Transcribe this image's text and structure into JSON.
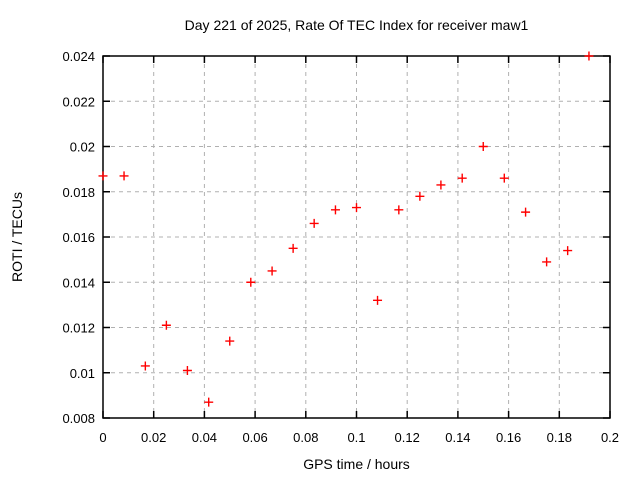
{
  "chart_data": {
    "type": "scatter",
    "title": "Day 221 of 2025, Rate Of TEC Index for receiver maw1",
    "xlabel": "GPS time / hours",
    "ylabel": "ROTI / TECUs",
    "xlim": [
      0,
      0.2
    ],
    "ylim": [
      0.008,
      0.024
    ],
    "x_ticks": [
      0,
      0.02,
      0.04,
      0.06,
      0.08,
      0.1,
      0.12,
      0.14,
      0.16,
      0.18,
      0.2
    ],
    "x_tick_labels": [
      "0",
      "0.02",
      "0.04",
      "0.06",
      "0.08",
      "0.1",
      "0.12",
      "0.14",
      "0.16",
      "0.18",
      "0.2"
    ],
    "y_ticks": [
      0.008,
      0.01,
      0.012,
      0.014,
      0.016,
      0.018,
      0.02,
      0.022,
      0.024
    ],
    "y_tick_labels": [
      "0.008",
      "0.01",
      "0.012",
      "0.014",
      "0.016",
      "0.018",
      "0.02",
      "0.022",
      "0.024"
    ],
    "grid": true,
    "legend_position": "none",
    "marker_shape": "plus",
    "marker_color": "#ff0000",
    "grid_color": "#b0b0b0",
    "border_color": "#000000",
    "points": [
      [
        0.0,
        0.0187
      ],
      [
        0.0083,
        0.0187
      ],
      [
        0.0167,
        0.0103
      ],
      [
        0.025,
        0.0121
      ],
      [
        0.0333,
        0.0101
      ],
      [
        0.0417,
        0.0087
      ],
      [
        0.05,
        0.0114
      ],
      [
        0.0583,
        0.014
      ],
      [
        0.0667,
        0.0145
      ],
      [
        0.075,
        0.0155
      ],
      [
        0.0833,
        0.0166
      ],
      [
        0.0917,
        0.0172
      ],
      [
        0.1,
        0.0173
      ],
      [
        0.1083,
        0.0132
      ],
      [
        0.1167,
        0.0172
      ],
      [
        0.125,
        0.0178
      ],
      [
        0.1333,
        0.0183
      ],
      [
        0.1417,
        0.0186
      ],
      [
        0.15,
        0.02
      ],
      [
        0.1583,
        0.0186
      ],
      [
        0.1667,
        0.0171
      ],
      [
        0.175,
        0.0149
      ],
      [
        0.1833,
        0.0154
      ],
      [
        0.1917,
        0.024
      ]
    ]
  }
}
